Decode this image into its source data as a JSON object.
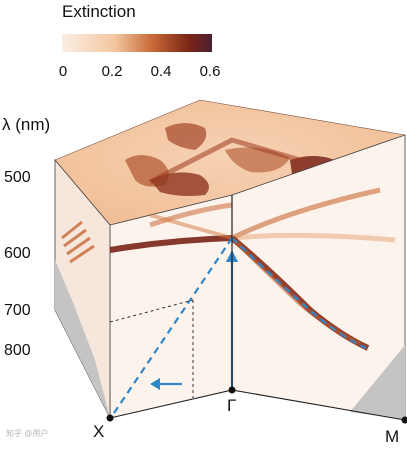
{
  "legend": {
    "title": "Extinction",
    "ticks": [
      "0",
      "0.2",
      "0.4",
      "0.6"
    ],
    "colors": [
      "#fbeee4",
      "#f2c9a2",
      "#dd8a4a",
      "#b5532a",
      "#6b1a12",
      "#4a2030"
    ]
  },
  "axis": {
    "title": "λ (nm)",
    "ticks": [
      "500",
      "600",
      "700",
      "800"
    ]
  },
  "points": {
    "x": "X",
    "gamma": "Γ",
    "m": "M"
  },
  "watermark": "知乎 @用户",
  "colors": {
    "face": "#fbf0e8",
    "top": "#f4c9a8",
    "band_dark": "#8a2a16",
    "band_light": "#d47a40",
    "path": "#2f86c8",
    "grey": "#c4c4c4"
  }
}
